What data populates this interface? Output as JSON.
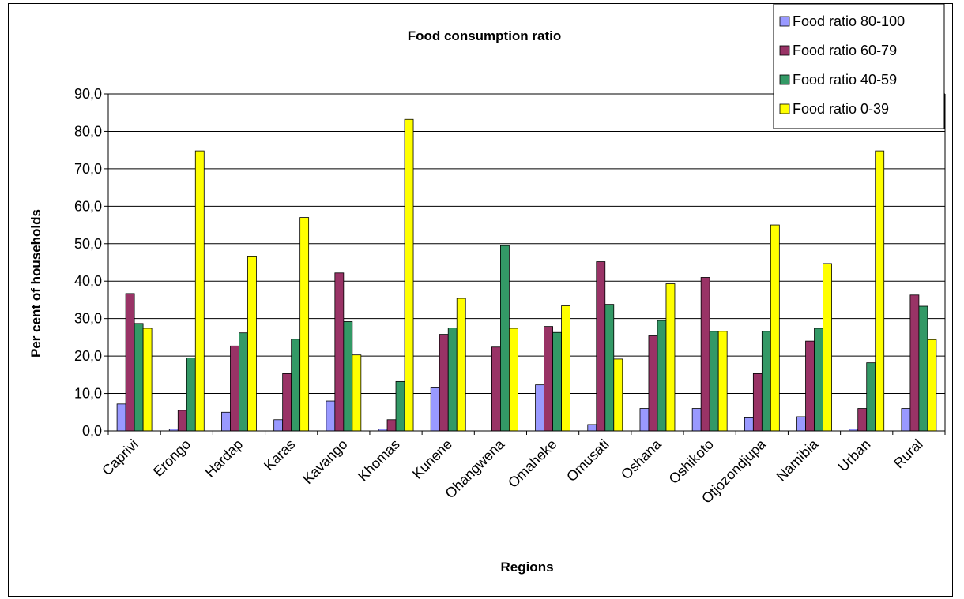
{
  "chart_data": {
    "type": "bar",
    "title": "Food consumption ratio",
    "xlabel": "Regions",
    "ylabel": "Per cent of households",
    "ylim": [
      0,
      90
    ],
    "yticks": [
      "0,0",
      "10,0",
      "20,0",
      "30,0",
      "40,0",
      "50,0",
      "60,0",
      "70,0",
      "80,0",
      "90,0"
    ],
    "grid": true,
    "legend_position": "top-right",
    "categories": [
      "Caprivi",
      "Erongo",
      "Hardap",
      "Karas",
      "Kavango",
      "Khomas",
      "Kunene",
      "Ohangwena",
      "Omaheke",
      "Omusati",
      "Oshana",
      "Oshikoto",
      "Otjozondjupa",
      "Namibia",
      "Urban",
      "Rural"
    ],
    "series": [
      {
        "name": "Food ratio 80-100",
        "color": "#9999ff",
        "values": [
          7.2,
          0.5,
          5.0,
          3.0,
          8.0,
          0.5,
          11.5,
          0.0,
          12.3,
          1.7,
          6.0,
          6.0,
          3.5,
          3.8,
          0.5,
          6.0
        ]
      },
      {
        "name": "Food ratio 60-79",
        "color": "#993366",
        "values": [
          36.7,
          5.5,
          22.7,
          15.3,
          42.2,
          3.0,
          25.8,
          22.4,
          27.9,
          45.2,
          25.4,
          41.0,
          15.3,
          24.0,
          6.0,
          36.3
        ]
      },
      {
        "name": "Food ratio 40-59",
        "color": "#339966",
        "values": [
          28.7,
          19.5,
          26.2,
          24.5,
          29.2,
          13.2,
          27.5,
          49.5,
          26.3,
          33.8,
          29.5,
          26.6,
          26.6,
          27.4,
          18.2,
          33.3
        ]
      },
      {
        "name": "Food ratio 0-39",
        "color": "#ffff00",
        "values": [
          27.4,
          74.8,
          46.5,
          57.0,
          20.3,
          83.2,
          35.4,
          27.4,
          33.4,
          19.2,
          39.3,
          26.6,
          55.0,
          44.7,
          74.8,
          24.4
        ]
      }
    ]
  }
}
